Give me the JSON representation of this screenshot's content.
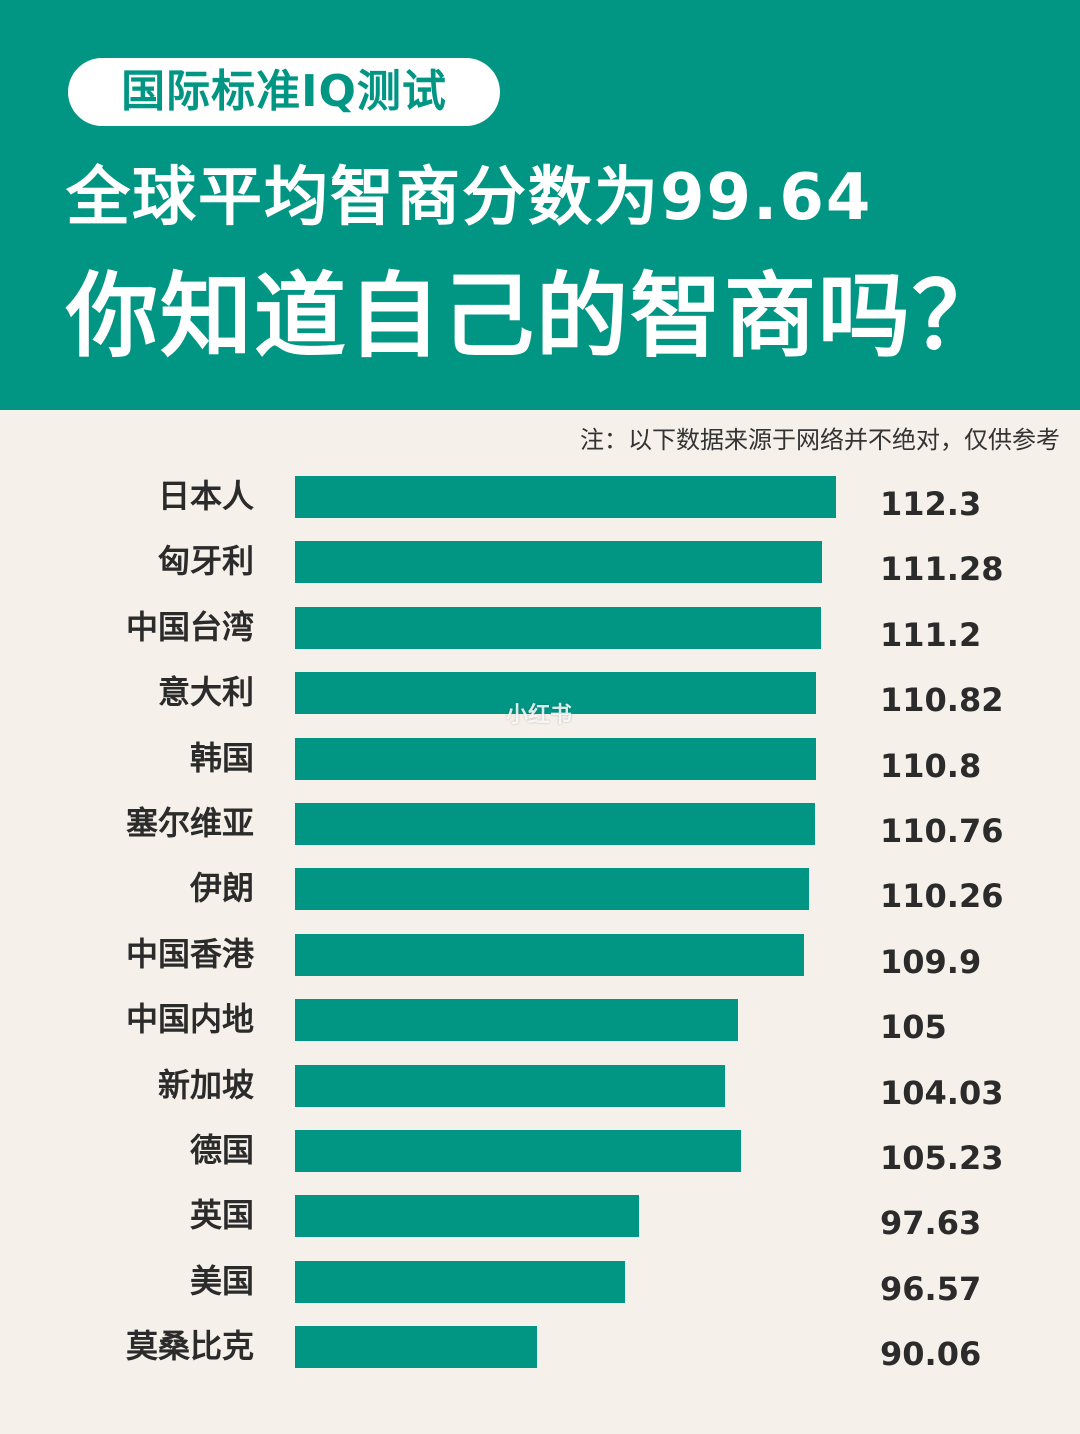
{
  "header": {
    "tag": "国际标准IQ测试",
    "headline_1": "全球平均智商分数为99.64",
    "headline_2": "你知道自己的智商吗？"
  },
  "note": "注：以下数据来源于网络并不绝对，仅供参考",
  "watermark": "小红书",
  "colors": {
    "brand": "#019684",
    "background": "#f5f0ea",
    "text": "#2b2b2b"
  },
  "chart_data": {
    "type": "bar",
    "orientation": "horizontal",
    "categories": [
      "日本人",
      "匈牙利",
      "中国台湾",
      "意大利",
      "韩国",
      "塞尔维亚",
      "伊朗",
      "中国香港",
      "中国内地",
      "新加坡",
      "德国",
      "英国",
      "美国",
      "莫桑比克"
    ],
    "values": [
      112.3,
      111.28,
      111.2,
      110.82,
      110.8,
      110.76,
      110.26,
      109.9,
      105,
      104.03,
      105.23,
      97.63,
      96.57,
      90.06
    ],
    "value_labels": [
      "112.3",
      "111.28",
      "111.2",
      "110.82",
      "110.8",
      "110.76",
      "110.26",
      "109.9",
      "105",
      "104.03",
      "105.23",
      "97.63",
      "96.57",
      "90.06"
    ],
    "bar_color": "#019684"
  }
}
